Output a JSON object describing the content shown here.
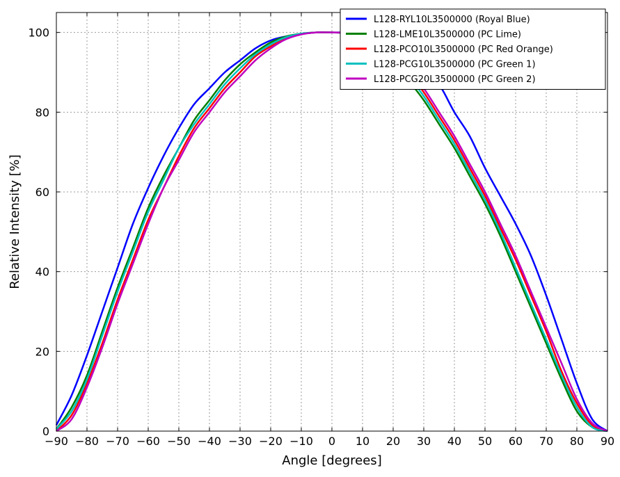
{
  "chart_data": {
    "type": "line",
    "xlabel": "Angle [degrees]",
    "ylabel": "Relative Intensity [%]",
    "xlim": [
      -90,
      90
    ],
    "ylim": [
      0,
      105
    ],
    "xticks": [
      -90,
      -80,
      -70,
      -60,
      -50,
      -40,
      -30,
      -20,
      -10,
      0,
      10,
      20,
      30,
      40,
      50,
      60,
      70,
      80,
      90
    ],
    "xtick_labels": [
      "−90",
      "−80",
      "−70",
      "−60",
      "−50",
      "−40",
      "−30",
      "−20",
      "−10",
      "0",
      "10",
      "20",
      "30",
      "40",
      "50",
      "60",
      "70",
      "80",
      "90"
    ],
    "yticks": [
      0,
      20,
      40,
      60,
      80,
      100
    ],
    "ytick_labels": [
      "0",
      "20",
      "40",
      "60",
      "80",
      "100"
    ],
    "grid": true,
    "legend_position": "top-right",
    "x": [
      -90,
      -85,
      -80,
      -75,
      -70,
      -65,
      -60,
      -55,
      -50,
      -45,
      -40,
      -35,
      -30,
      -25,
      -20,
      -15,
      -10,
      -5,
      0,
      5,
      10,
      15,
      20,
      25,
      30,
      35,
      40,
      45,
      50,
      55,
      60,
      65,
      70,
      75,
      80,
      85,
      90
    ],
    "series": [
      {
        "name": "L128-RYL10L3500000 (Royal Blue)",
        "color": "#0000ff",
        "values": [
          1.5,
          9,
          19,
          30,
          41,
          52,
          61,
          69,
          76,
          82,
          86,
          90,
          93,
          96,
          98,
          99,
          99.6,
          100,
          100,
          100,
          99.6,
          99,
          97.5,
          95,
          91,
          87,
          80,
          74,
          66,
          59,
          52,
          44,
          34,
          23,
          12,
          3,
          0
        ]
      },
      {
        "name": "L128-LME10L3500000 (PC Lime)",
        "color": "#008000",
        "values": [
          0.5,
          6,
          14,
          25,
          36,
          46,
          56,
          64,
          71,
          78,
          83,
          88,
          92,
          95,
          97.5,
          99,
          99.7,
          100,
          100,
          99.8,
          99,
          96.5,
          93,
          88,
          83,
          77,
          71,
          64,
          57,
          49,
          40,
          31,
          22,
          13,
          5,
          1,
          0
        ]
      },
      {
        "name": "L128-PCO10L3500000 (PC Red Orange)",
        "color": "#ff0000",
        "values": [
          0,
          4,
          12,
          22,
          33,
          43,
          53,
          61,
          69,
          76,
          81,
          86,
          90,
          94,
          96.5,
          98.5,
          99.6,
          100,
          100,
          99.9,
          99.3,
          97.5,
          94.5,
          90,
          85,
          79,
          73,
          66,
          59,
          51,
          43,
          34,
          25,
          15,
          7,
          1.5,
          0
        ]
      },
      {
        "name": "L128-PCG10L3500000 (PC Green 1)",
        "color": "#00bfbf",
        "values": [
          0.5,
          5,
          13,
          24,
          35,
          45,
          55,
          63,
          71,
          77,
          82,
          87,
          91,
          94.5,
          97,
          98.8,
          99.7,
          100,
          100,
          99.8,
          99.1,
          97,
          93.5,
          89,
          84,
          78,
          72,
          65,
          58,
          50,
          41,
          32,
          23,
          14,
          6,
          1,
          0
        ]
      },
      {
        "name": "L128-PCG20L3500000 (PC Green 2)",
        "color": "#bf00bf",
        "values": [
          0,
          3,
          11,
          21,
          32,
          42,
          52,
          61,
          68,
          75,
          80,
          85,
          89,
          93,
          96,
          98.3,
          99.5,
          100,
          100,
          99.9,
          99.4,
          97.8,
          95,
          91,
          86,
          80,
          74,
          67,
          60,
          52,
          44,
          35,
          26,
          17,
          8,
          2,
          0
        ]
      }
    ]
  }
}
